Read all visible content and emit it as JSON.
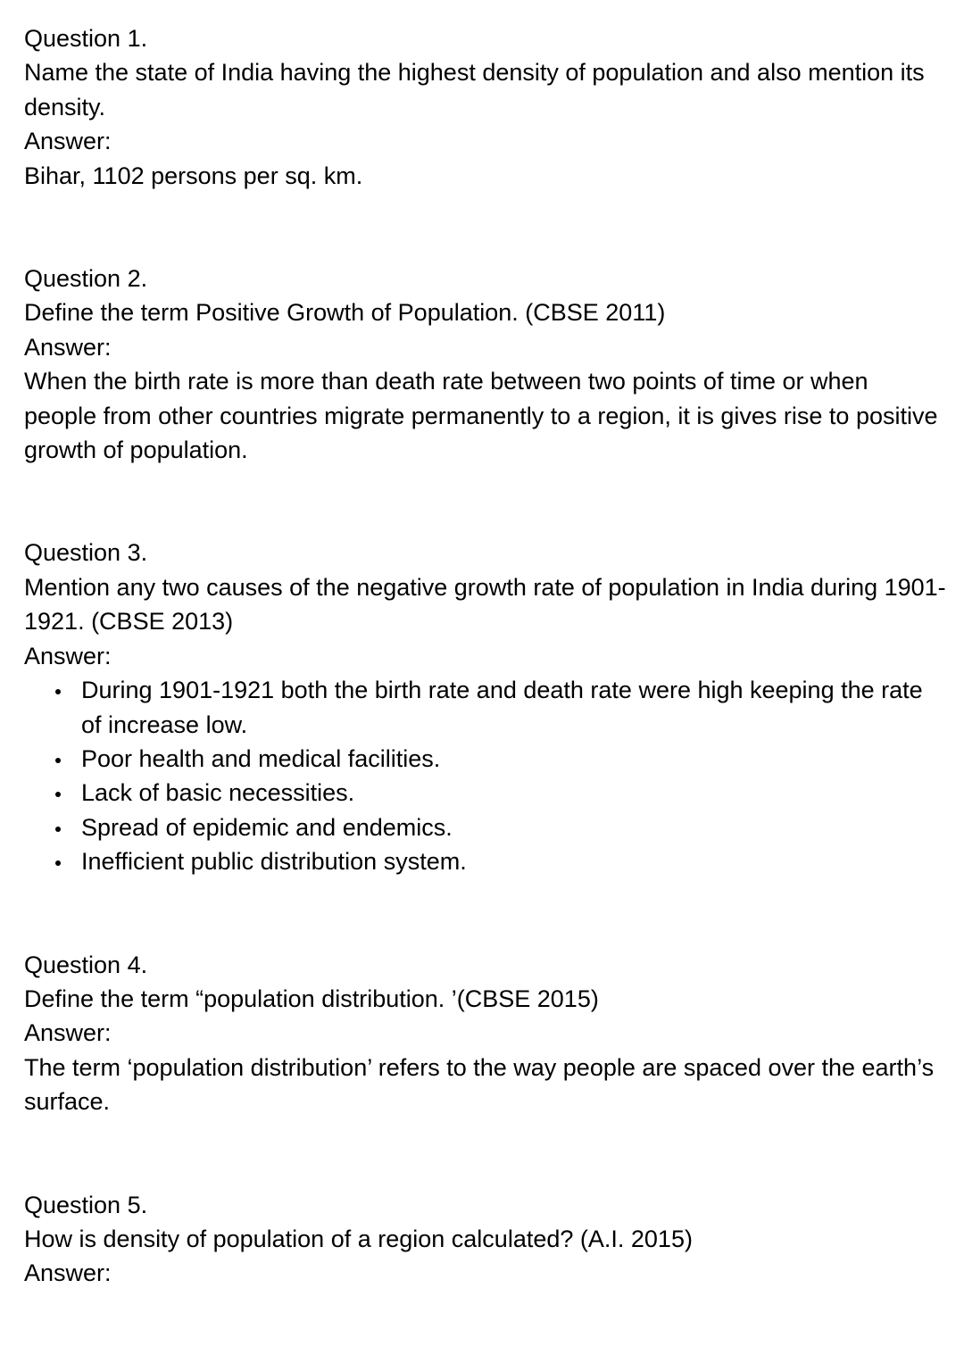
{
  "questions": [
    {
      "heading": "Question 1.",
      "question": "Name the state of India having the highest density of population and also mention its density.",
      "answer_label": "Answer:",
      "answer": "Bihar, 1102 persons per sq. km."
    },
    {
      "heading": "Question 2.",
      "question": "Define the term Positive Growth of Population. (CBSE 2011)",
      "answer_label": "Answer:",
      "answer": "When the birth rate is more than death rate between two points of time or when people from other countries migrate permanently to a region, it is gives rise to positive growth of population."
    },
    {
      "heading": "Question 3.",
      "question": "Mention any two causes of the negative growth rate of population in India during 1901-1921. (CBSE 2013)",
      "answer_label": "Answer:",
      "answer_points": [
        "During 1901-1921 both the birth rate and death rate were high keeping the rate of increase low.",
        "Poor health and medical facilities.",
        "Lack of basic necessities.",
        "Spread of epidemic and endemics.",
        "Inefficient public distribution system."
      ]
    },
    {
      "heading": "Question 4.",
      "question": "Define the term “population distribution. ’(CBSE 2015)",
      "answer_label": "Answer:",
      "answer": "The term ‘population distribution’ refers to the way people are spaced over the earth’s surface."
    },
    {
      "heading": "Question 5.",
      "question": "How is density of population of a region calculated? (A.I. 2015)",
      "answer_label": "Answer:"
    }
  ]
}
